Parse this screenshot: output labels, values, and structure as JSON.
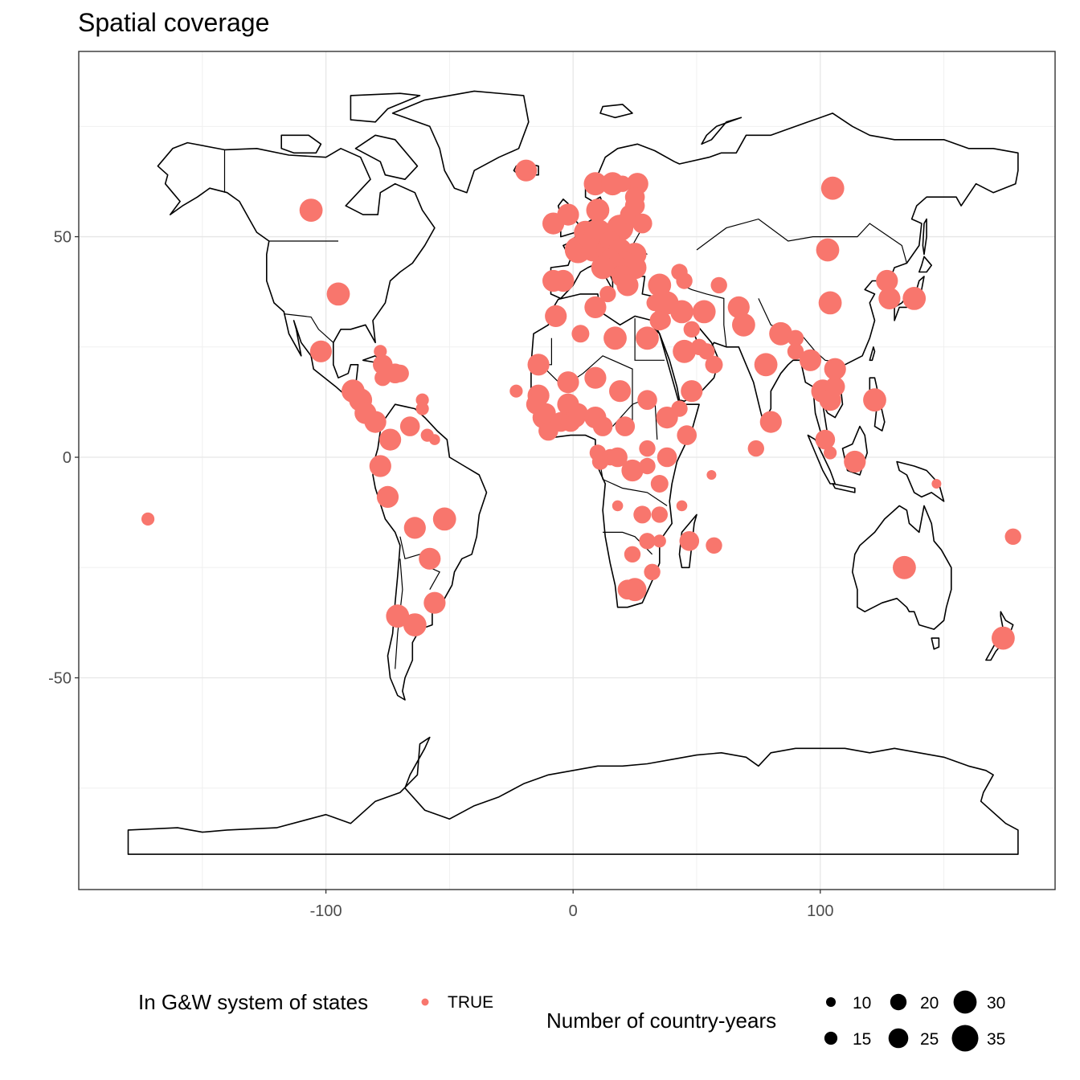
{
  "chart_data": {
    "type": "scatter",
    "title": "Spatial coverage",
    "xlabel": "",
    "ylabel": "",
    "xlim": [
      -200,
      195
    ],
    "ylim": [
      -98,
      92
    ],
    "x_ticks": [
      -100,
      0,
      100
    ],
    "x_tick_labels": [
      "-100",
      "0",
      "100"
    ],
    "y_ticks": [
      -50,
      0,
      50
    ],
    "y_tick_labels": [
      "-50",
      "0",
      "50"
    ],
    "grid": true,
    "basemap": "world coastlines and country borders",
    "color_legend": {
      "title": "In G&W system of states",
      "entries": [
        {
          "label": "TRUE",
          "color": "#F8766D"
        }
      ]
    },
    "size_legend": {
      "title": "Number of country-years",
      "entries": [
        10,
        15,
        20,
        25,
        30,
        35
      ],
      "labels": [
        "10",
        "15",
        "20",
        "25",
        "30",
        "35"
      ]
    },
    "series": [
      {
        "name": "TRUE",
        "color": "#F8766D",
        "points": [
          {
            "lon": -106,
            "lat": 56,
            "n": 30
          },
          {
            "lon": -95,
            "lat": 37,
            "n": 30
          },
          {
            "lon": -102,
            "lat": 24,
            "n": 28
          },
          {
            "lon": -172,
            "lat": -14,
            "n": 15
          },
          {
            "lon": -89,
            "lat": 15,
            "n": 30
          },
          {
            "lon": -86,
            "lat": 13,
            "n": 30
          },
          {
            "lon": -84,
            "lat": 10,
            "n": 28
          },
          {
            "lon": -80,
            "lat": 8,
            "n": 28
          },
          {
            "lon": -77,
            "lat": 21,
            "n": 25
          },
          {
            "lon": -72,
            "lat": 19,
            "n": 25
          },
          {
            "lon": -70,
            "lat": 19,
            "n": 22
          },
          {
            "lon": -77,
            "lat": 18,
            "n": 20
          },
          {
            "lon": -78,
            "lat": 24,
            "n": 15
          },
          {
            "lon": -61,
            "lat": 13,
            "n": 15
          },
          {
            "lon": -61,
            "lat": 11,
            "n": 15
          },
          {
            "lon": -66,
            "lat": 7,
            "n": 25
          },
          {
            "lon": -74,
            "lat": 4,
            "n": 28
          },
          {
            "lon": -59,
            "lat": 5,
            "n": 15
          },
          {
            "lon": -56,
            "lat": 4,
            "n": 12
          },
          {
            "lon": -78,
            "lat": -2,
            "n": 28
          },
          {
            "lon": -75,
            "lat": -9,
            "n": 28
          },
          {
            "lon": -64,
            "lat": -16,
            "n": 28
          },
          {
            "lon": -52,
            "lat": -14,
            "n": 30
          },
          {
            "lon": -58,
            "lat": -23,
            "n": 28
          },
          {
            "lon": -56,
            "lat": -33,
            "n": 28
          },
          {
            "lon": -71,
            "lat": -36,
            "n": 30
          },
          {
            "lon": -64,
            "lat": -38,
            "n": 30
          },
          {
            "lon": -19,
            "lat": 65,
            "n": 28
          },
          {
            "lon": -8,
            "lat": 53,
            "n": 28
          },
          {
            "lon": -2,
            "lat": 55,
            "n": 28
          },
          {
            "lon": 2,
            "lat": 47,
            "n": 35
          },
          {
            "lon": 5,
            "lat": 51,
            "n": 30
          },
          {
            "lon": 6,
            "lat": 49,
            "n": 20
          },
          {
            "lon": 10,
            "lat": 56,
            "n": 30
          },
          {
            "lon": 9,
            "lat": 62,
            "n": 30
          },
          {
            "lon": 16,
            "lat": 62,
            "n": 30
          },
          {
            "lon": 26,
            "lat": 62,
            "n": 28
          },
          {
            "lon": 20,
            "lat": 62,
            "n": 20
          },
          {
            "lon": 10,
            "lat": 51,
            "n": 35
          },
          {
            "lon": 8,
            "lat": 47,
            "n": 30
          },
          {
            "lon": 14,
            "lat": 47,
            "n": 30
          },
          {
            "lon": 19,
            "lat": 52,
            "n": 35
          },
          {
            "lon": 15,
            "lat": 49,
            "n": 25
          },
          {
            "lon": 19,
            "lat": 47,
            "n": 30
          },
          {
            "lon": 23,
            "lat": 55,
            "n": 25
          },
          {
            "lon": 25,
            "lat": 57,
            "n": 25
          },
          {
            "lon": 25,
            "lat": 59,
            "n": 25
          },
          {
            "lon": 28,
            "lat": 53,
            "n": 25
          },
          {
            "lon": 25,
            "lat": 46,
            "n": 30
          },
          {
            "lon": 25,
            "lat": 43,
            "n": 30
          },
          {
            "lon": 21,
            "lat": 44,
            "n": 30
          },
          {
            "lon": 18,
            "lat": 43,
            "n": 28
          },
          {
            "lon": 15,
            "lat": 45,
            "n": 25
          },
          {
            "lon": 20,
            "lat": 41,
            "n": 28
          },
          {
            "lon": 22,
            "lat": 39,
            "n": 28
          },
          {
            "lon": 12,
            "lat": 43,
            "n": 30
          },
          {
            "lon": 14,
            "lat": 37,
            "n": 20
          },
          {
            "lon": -4,
            "lat": 40,
            "n": 28
          },
          {
            "lon": -8,
            "lat": 40,
            "n": 28
          },
          {
            "lon": -7,
            "lat": 32,
            "n": 28
          },
          {
            "lon": 3,
            "lat": 28,
            "n": 22
          },
          {
            "lon": 9,
            "lat": 34,
            "n": 28
          },
          {
            "lon": 17,
            "lat": 27,
            "n": 30
          },
          {
            "lon": 30,
            "lat": 27,
            "n": 30
          },
          {
            "lon": 35,
            "lat": 39,
            "n": 30
          },
          {
            "lon": 33,
            "lat": 35,
            "n": 20
          },
          {
            "lon": 36,
            "lat": 34,
            "n": 20
          },
          {
            "lon": 38,
            "lat": 35,
            "n": 30
          },
          {
            "lon": 35,
            "lat": 31,
            "n": 25
          },
          {
            "lon": 36,
            "lat": 31,
            "n": 22
          },
          {
            "lon": 44,
            "lat": 33,
            "n": 30
          },
          {
            "lon": 45,
            "lat": 40,
            "n": 20
          },
          {
            "lon": 43,
            "lat": 42,
            "n": 20
          },
          {
            "lon": 48,
            "lat": 29,
            "n": 20
          },
          {
            "lon": 45,
            "lat": 24,
            "n": 30
          },
          {
            "lon": 51,
            "lat": 25,
            "n": 20
          },
          {
            "lon": 54,
            "lat": 24,
            "n": 20
          },
          {
            "lon": 57,
            "lat": 21,
            "n": 22
          },
          {
            "lon": 48,
            "lat": 15,
            "n": 28
          },
          {
            "lon": 53,
            "lat": 33,
            "n": 30
          },
          {
            "lon": 59,
            "lat": 39,
            "n": 20
          },
          {
            "lon": 67,
            "lat": 34,
            "n": 28
          },
          {
            "lon": 69,
            "lat": 30,
            "n": 30
          },
          {
            "lon": 78,
            "lat": 21,
            "n": 30
          },
          {
            "lon": 84,
            "lat": 28,
            "n": 30
          },
          {
            "lon": 90,
            "lat": 27,
            "n": 20
          },
          {
            "lon": 90,
            "lat": 24,
            "n": 20
          },
          {
            "lon": 96,
            "lat": 22,
            "n": 28
          },
          {
            "lon": 101,
            "lat": 15,
            "n": 30
          },
          {
            "lon": 104,
            "lat": 13,
            "n": 28
          },
          {
            "lon": 106,
            "lat": 16,
            "n": 25
          },
          {
            "lon": 106,
            "lat": 20,
            "n": 28
          },
          {
            "lon": 104,
            "lat": 35,
            "n": 30
          },
          {
            "lon": 103,
            "lat": 47,
            "n": 30
          },
          {
            "lon": 105,
            "lat": 61,
            "n": 30
          },
          {
            "lon": 127,
            "lat": 40,
            "n": 28
          },
          {
            "lon": 128,
            "lat": 36,
            "n": 28
          },
          {
            "lon": 138,
            "lat": 36,
            "n": 30
          },
          {
            "lon": 122,
            "lat": 13,
            "n": 30
          },
          {
            "lon": 114,
            "lat": -1,
            "n": 28
          },
          {
            "lon": 102,
            "lat": 4,
            "n": 25
          },
          {
            "lon": 104,
            "lat": 1,
            "n": 15
          },
          {
            "lon": 80,
            "lat": 8,
            "n": 28
          },
          {
            "lon": 74,
            "lat": 2,
            "n": 20
          },
          {
            "lon": 134,
            "lat": -25,
            "n": 30
          },
          {
            "lon": 174,
            "lat": -41,
            "n": 30
          },
          {
            "lon": 178,
            "lat": -18,
            "n": 20
          },
          {
            "lon": 147,
            "lat": -6,
            "n": 10
          },
          {
            "lon": -14,
            "lat": 21,
            "n": 28
          },
          {
            "lon": -2,
            "lat": 17,
            "n": 28
          },
          {
            "lon": 9,
            "lat": 18,
            "n": 28
          },
          {
            "lon": 19,
            "lat": 15,
            "n": 28
          },
          {
            "lon": 30,
            "lat": 13,
            "n": 25
          },
          {
            "lon": 43,
            "lat": 11,
            "n": 20
          },
          {
            "lon": 38,
            "lat": 9,
            "n": 28
          },
          {
            "lon": 46,
            "lat": 5,
            "n": 25
          },
          {
            "lon": -14,
            "lat": 14,
            "n": 28
          },
          {
            "lon": -15,
            "lat": 12,
            "n": 25
          },
          {
            "lon": -12,
            "lat": 9,
            "n": 28
          },
          {
            "lon": -10,
            "lat": 6,
            "n": 25
          },
          {
            "lon": -11,
            "lat": 10,
            "n": 25
          },
          {
            "lon": -5,
            "lat": 8,
            "n": 25
          },
          {
            "lon": -2,
            "lat": 12,
            "n": 28
          },
          {
            "lon": -1,
            "lat": 8,
            "n": 25
          },
          {
            "lon": 1,
            "lat": 9,
            "n": 25
          },
          {
            "lon": 2,
            "lat": 10,
            "n": 25
          },
          {
            "lon": 9,
            "lat": 9,
            "n": 28
          },
          {
            "lon": 12,
            "lat": 7,
            "n": 25
          },
          {
            "lon": 21,
            "lat": 7,
            "n": 25
          },
          {
            "lon": 10,
            "lat": 1,
            "n": 20
          },
          {
            "lon": 11,
            "lat": -1,
            "n": 20
          },
          {
            "lon": 15,
            "lat": 0,
            "n": 20
          },
          {
            "lon": 18,
            "lat": 0,
            "n": 25
          },
          {
            "lon": 24,
            "lat": -3,
            "n": 28
          },
          {
            "lon": 30,
            "lat": 2,
            "n": 20
          },
          {
            "lon": 30,
            "lat": -2,
            "n": 20
          },
          {
            "lon": 38,
            "lat": 0,
            "n": 25
          },
          {
            "lon": 35,
            "lat": -6,
            "n": 22
          },
          {
            "lon": 18,
            "lat": -11,
            "n": 12
          },
          {
            "lon": 28,
            "lat": -13,
            "n": 22
          },
          {
            "lon": 35,
            "lat": -13,
            "n": 20
          },
          {
            "lon": 30,
            "lat": -19,
            "n": 20
          },
          {
            "lon": 35,
            "lat": -19,
            "n": 15
          },
          {
            "lon": 24,
            "lat": -22,
            "n": 20
          },
          {
            "lon": 25,
            "lat": -30,
            "n": 30
          },
          {
            "lon": 22,
            "lat": -30,
            "n": 25
          },
          {
            "lon": 32,
            "lat": -26,
            "n": 20
          },
          {
            "lon": 47,
            "lat": -19,
            "n": 25
          },
          {
            "lon": 44,
            "lat": -11,
            "n": 12
          },
          {
            "lon": 57,
            "lat": -20,
            "n": 20
          },
          {
            "lon": 56,
            "lat": -4,
            "n": 10
          },
          {
            "lon": -23,
            "lat": 15,
            "n": 15
          }
        ]
      }
    ]
  }
}
